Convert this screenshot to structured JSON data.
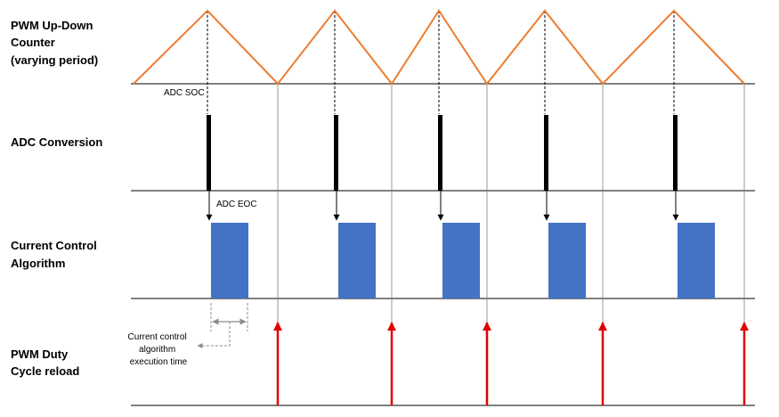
{
  "rows": {
    "pwm_counter": {
      "label_lines": [
        "PWM Up-Down",
        "Counter",
        "(varying period)"
      ]
    },
    "adc_conversion": {
      "label_lines": [
        "ADC Conversion"
      ]
    },
    "current_control": {
      "label_lines": [
        "Current Control",
        "Algorithm"
      ]
    },
    "pwm_reload": {
      "label_lines": [
        "PWM Duty",
        "Cycle reload"
      ]
    }
  },
  "annotations": {
    "adc_soc": "ADC SOC",
    "adc_eoc": "ADC EOC",
    "exec_time_lines": [
      "Current control",
      "algorithm",
      "execution time"
    ]
  },
  "colors": {
    "triangle": "#ed7d31",
    "algorithm_block": "#4472c4",
    "reload_arrow": "#e00000",
    "adc_pulse": "#000000",
    "guide_line": "#7f7f7f",
    "measure_arrow": "#8c8c8c"
  },
  "periods": 5,
  "icons": {
    "soc_arrow": "arrow-down-icon",
    "reload_arrow": "arrow-up-icon"
  }
}
